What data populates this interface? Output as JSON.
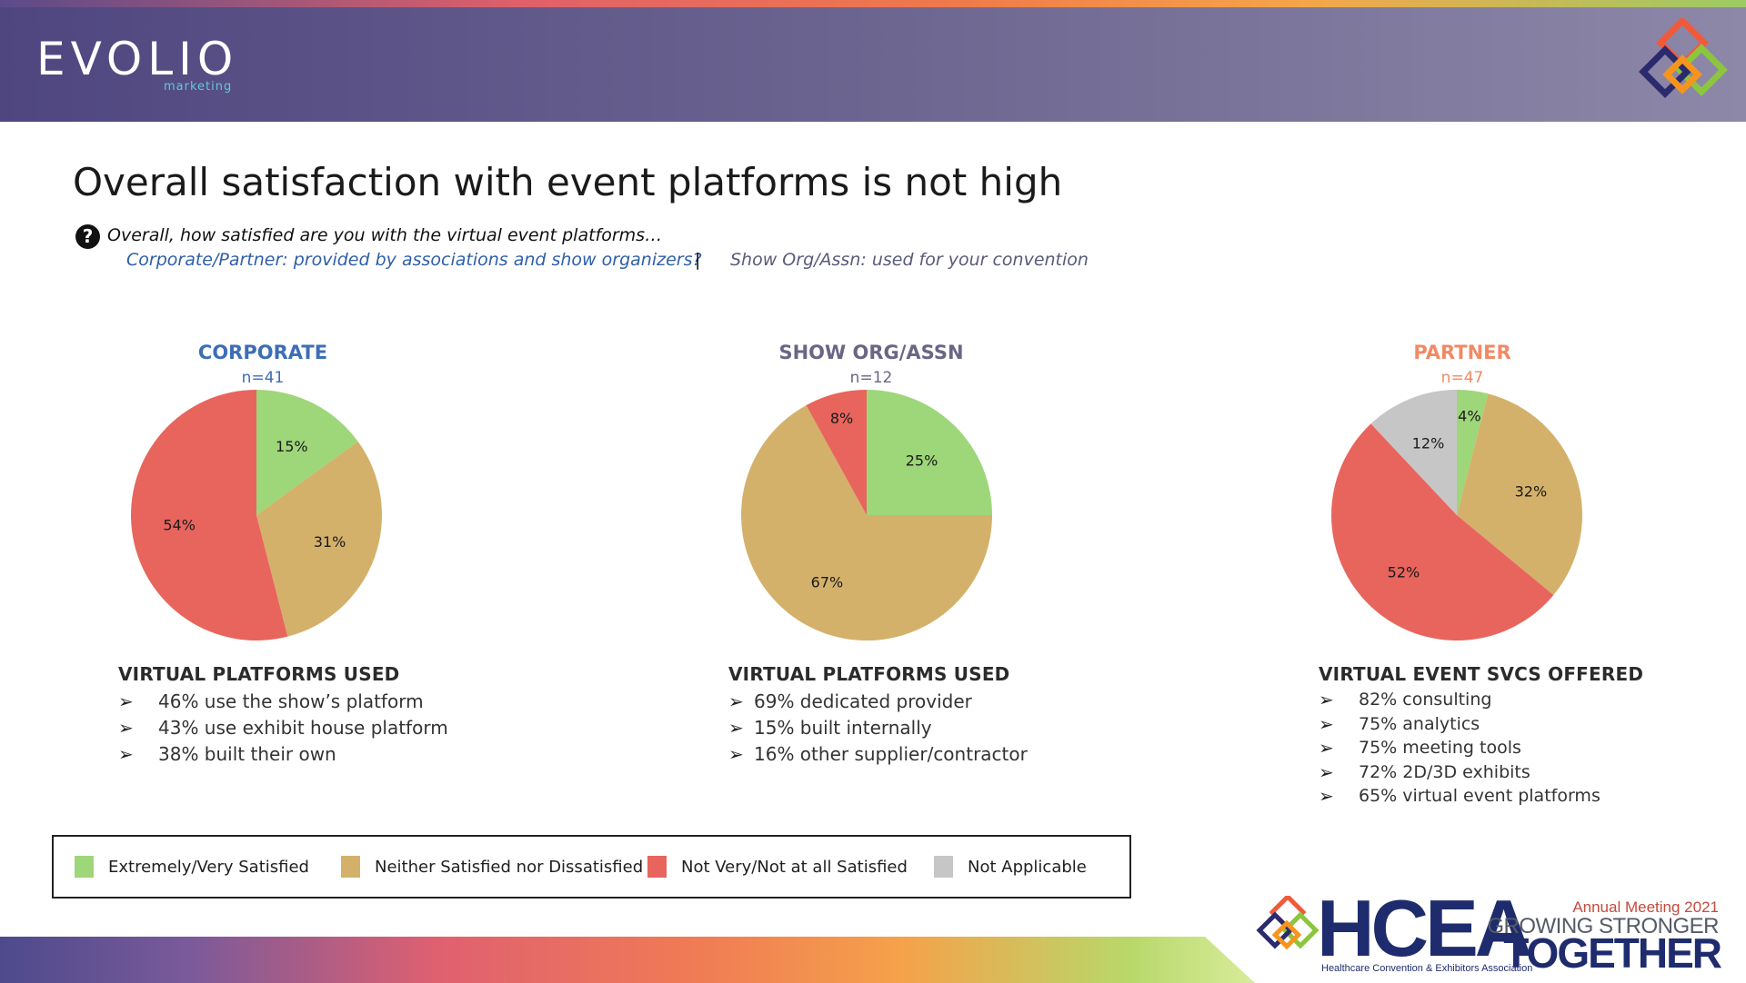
{
  "brand": {
    "logo_text": "EVOLIO",
    "logo_subtext": "marketing"
  },
  "title": "Overall satisfaction with event platforms is not high",
  "question": {
    "icon": "question-circle-icon",
    "text": "Overall, how satisfied are you with the virtual event platforms…",
    "corporate_partner": "Corporate/Partner: provided by associations and show organizers?",
    "separator": "|",
    "show_org": "Show Org/Assn: used for your convention"
  },
  "colors": {
    "satisfied": "#9ed67a",
    "neither": "#d4b16a",
    "not_satisfied": "#e8655d",
    "not_applicable": "#c6c6c6",
    "corporate_title": "#3d6db5",
    "show_title": "#6b6585",
    "partner_title": "#f08a64"
  },
  "chart_data": [
    {
      "type": "pie",
      "title": "CORPORATE",
      "subtitle": "n=41",
      "categories": [
        "Extremely/Very Satisfied",
        "Neither Satisfied nor Dissatisfied",
        "Not Very/Not at all Satisfied"
      ],
      "values": [
        15,
        31,
        54
      ],
      "labels": [
        "15%",
        "31%",
        "54%"
      ]
    },
    {
      "type": "pie",
      "title": "SHOW ORG/ASSN",
      "subtitle": "n=12",
      "categories": [
        "Extremely/Very Satisfied",
        "Neither Satisfied nor Dissatisfied",
        "Not Very/Not at all Satisfied"
      ],
      "values": [
        25,
        67,
        8
      ],
      "labels": [
        "25%",
        "67%",
        "8%"
      ]
    },
    {
      "type": "pie",
      "title": "PARTNER",
      "subtitle": "n=47",
      "categories": [
        "Extremely/Very Satisfied",
        "Neither Satisfied nor Dissatisfied",
        "Not Very/Not at all Satisfied",
        "Not Applicable"
      ],
      "values": [
        4,
        32,
        52,
        12
      ],
      "labels": [
        "4%",
        "32%",
        "52%",
        "12%"
      ]
    }
  ],
  "panels": [
    {
      "heading": "VIRTUAL PLATFORMS USED",
      "items": [
        "46% use the show’s platform",
        "43% use exhibit house platform",
        "38% built their own"
      ]
    },
    {
      "heading": "VIRTUAL PLATFORMS USED",
      "items": [
        "69% dedicated provider",
        "15% built internally",
        "16% other supplier/contractor"
      ]
    },
    {
      "heading": "VIRTUAL EVENT SVCS OFFERED",
      "items": [
        "82% consulting",
        "75% analytics",
        "75% meeting tools",
        "72% 2D/3D exhibits",
        "65% virtual event platforms"
      ]
    }
  ],
  "bullet_glyph": "➢",
  "legend": [
    {
      "label": "Extremely/Very Satisfied",
      "color": "#9ed67a"
    },
    {
      "label": "Neither Satisfied nor Dissatisfied",
      "color": "#d4b16a"
    },
    {
      "label": "Not Very/Not at all Satisfied",
      "color": "#e8655d"
    },
    {
      "label": "Not Applicable",
      "color": "#c6c6c6"
    }
  ],
  "footer": {
    "org_name": "HCEA",
    "org_subtext": "Healthcare Convention & Exhibitors Association",
    "event_line": "Annual Meeting 2021",
    "slogan_1": "GROWING STRONGER",
    "slogan_2": "TOGETHER"
  }
}
